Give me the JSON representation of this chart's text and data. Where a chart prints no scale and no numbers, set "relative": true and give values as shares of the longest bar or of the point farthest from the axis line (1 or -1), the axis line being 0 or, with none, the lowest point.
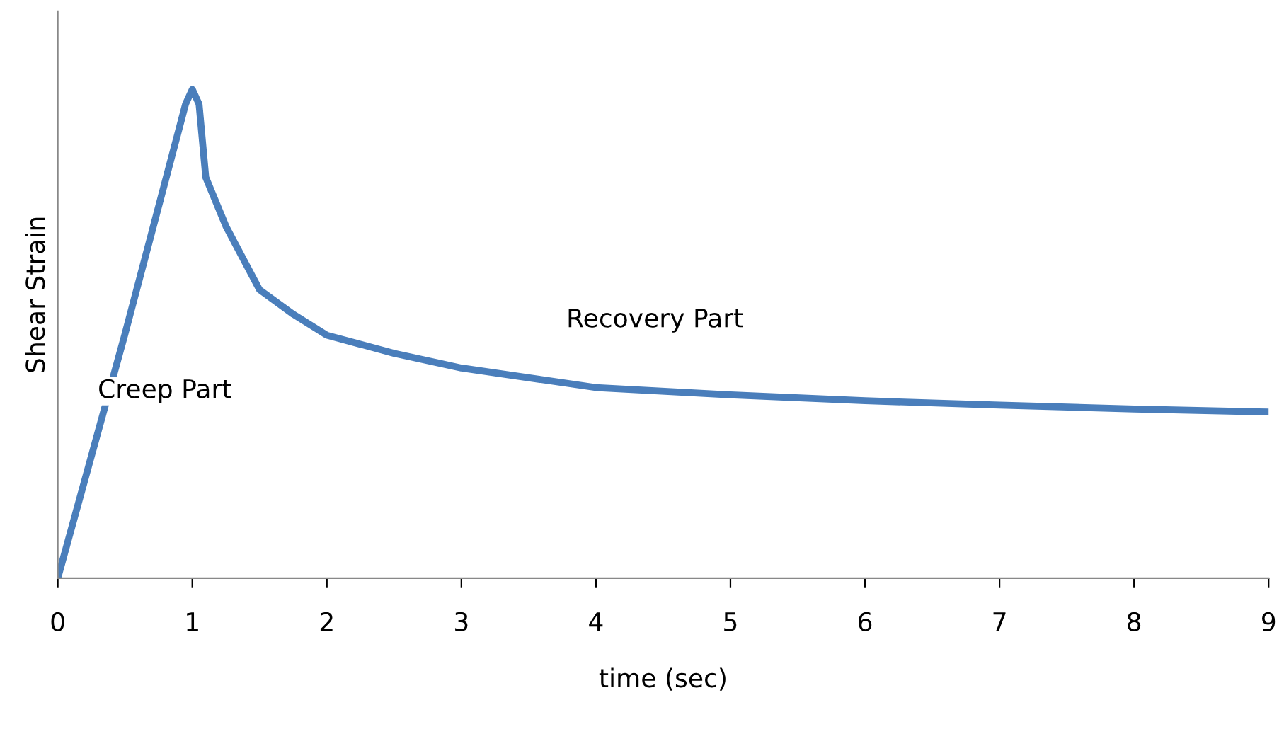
{
  "chart_data": {
    "type": "line",
    "xlabel": "time (sec)",
    "ylabel": "Shear Strain",
    "relative": true,
    "xlim": [
      0,
      9
    ],
    "xticks": [
      0,
      1,
      2,
      3,
      4,
      5,
      6,
      7,
      8,
      9
    ],
    "grid": false,
    "marker": "none",
    "line_style": "solid",
    "x": [
      0,
      0.5,
      0.95,
      1.0,
      1.05,
      1.1,
      1.25,
      1.5,
      1.75,
      2,
      2.5,
      3,
      4,
      5,
      6,
      7,
      8,
      9
    ],
    "series": [
      {
        "color": "#4a7ebb",
        "values": [
          0,
          0.5,
          0.97,
          1.0,
          0.97,
          0.82,
          0.72,
          0.59,
          0.54,
          0.497,
          0.46,
          0.43,
          0.39,
          0.375,
          0.363,
          0.354,
          0.346,
          0.34
        ]
      }
    ],
    "annotations": [
      "Creep Part",
      "Recovery Part"
    ]
  }
}
